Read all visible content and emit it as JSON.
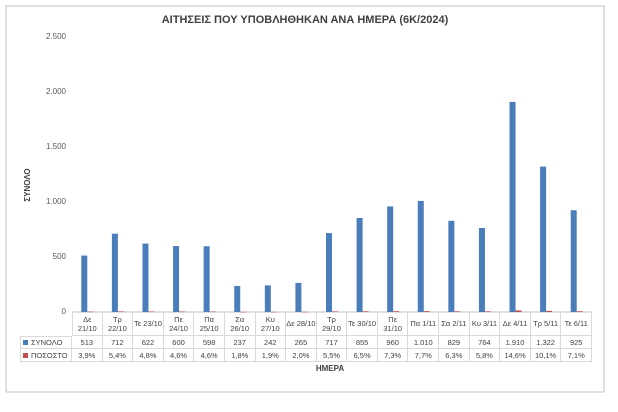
{
  "chart_data": {
    "type": "bar",
    "title": "ΑΙΤΗΣΕΙΣ ΠΟΥ ΥΠΟΒΛΗΘΗΚΑΝ ΑΝΑ ΗΜΕΡΑ (6Κ/2024)",
    "y_label": "ΣΥΝΟΛΟ",
    "x_label": "ΗΜΕΡΑ",
    "categories": [
      "Δε 21/10",
      "Τρ 22/10",
      "Τε 23/10",
      "Πε 24/10",
      "Πα 25/10",
      "Σα 26/10",
      "Κυ 27/10",
      "Δε 28/10",
      "Τρ 29/10",
      "Τε 30/10",
      "Πε 31/10",
      "Πα 1/11",
      "Σα 2/11",
      "Κυ 3/11",
      "Δε 4/11",
      "Τρ 5/11",
      "Τε 6/11"
    ],
    "series": [
      {
        "name": "ΣΥΝΟΛΟ",
        "color": "#4a7ebb",
        "values": [
          513,
          712,
          622,
          600,
          598,
          237,
          242,
          265,
          717,
          855,
          960,
          1010,
          829,
          764,
          1910,
          1322,
          925
        ],
        "value_labels": [
          "513",
          "712",
          "622",
          "600",
          "598",
          "237",
          "242",
          "265",
          "717",
          "855",
          "960",
          "1.010",
          "829",
          "764",
          "1.910",
          "1.322",
          "925"
        ]
      },
      {
        "name": "ΠΟΣΟΣΤΟ",
        "color": "#c0504d",
        "values": [
          3.9,
          5.4,
          4.8,
          4.6,
          4.6,
          1.8,
          1.9,
          2.0,
          5.5,
          6.5,
          7.3,
          7.7,
          6.3,
          5.8,
          14.6,
          10.1,
          7.1
        ],
        "value_labels": [
          "3,9%",
          "5,4%",
          "4,8%",
          "4,6%",
          "4,6%",
          "1,8%",
          "1,9%",
          "2,0%",
          "5,5%",
          "6,5%",
          "7,3%",
          "7,7%",
          "6,3%",
          "5,8%",
          "14,6%",
          "10,1%",
          "7,1%"
        ]
      }
    ],
    "ylim": [
      0,
      2500
    ],
    "yticks": [
      0,
      500,
      {
        "value": 1000,
        "label": "1.000"
      },
      {
        "value": 1500,
        "label": "1.500"
      },
      {
        "value": 2000,
        "label": "2.000"
      },
      {
        "value": 2500,
        "label": "2.500"
      }
    ],
    "grid": false
  }
}
